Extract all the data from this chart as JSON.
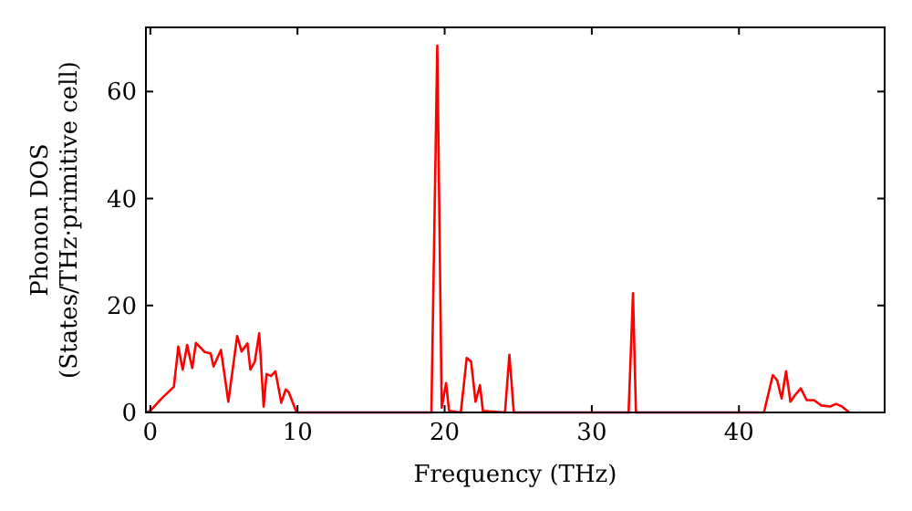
{
  "chart_data": {
    "type": "line",
    "xlabel": "Frequency (THz)",
    "ylabel": "Phonon DOS\n(States/THz·primitive cell)",
    "xlim": [
      -0.3,
      49.9
    ],
    "ylim": [
      0,
      72
    ],
    "xticks": [
      0,
      10,
      20,
      30,
      40
    ],
    "yticks": [
      0,
      20,
      40,
      60
    ],
    "grid": false,
    "marker": "none",
    "line_style": "solid",
    "series": [
      {
        "color": "#ff0000",
        "x": [
          -0.3,
          0,
          0.8,
          1.6,
          1.9,
          2.2,
          2.5,
          2.85,
          3.1,
          3.7,
          4.1,
          4.3,
          4.8,
          5.3,
          5.9,
          6.2,
          6.6,
          6.8,
          7.1,
          7.4,
          7.7,
          7.9,
          8.2,
          8.5,
          8.9,
          9.2,
          9.4,
          9.9,
          10,
          19.1,
          19.5,
          19.8,
          20.1,
          20.3,
          21.1,
          21.5,
          21.8,
          22.1,
          22.4,
          22.6,
          24.1,
          24.4,
          24.7,
          32.5,
          32.8,
          33.0,
          41.7,
          42.3,
          42.6,
          42.9,
          43.2,
          43.5,
          43.8,
          44.2,
          44.6,
          45.1,
          45.6,
          46.2,
          46.6,
          47.0,
          47.5
        ],
        "values": [
          0,
          0.3,
          2.7,
          4.8,
          12.3,
          8,
          12.6,
          8.3,
          13,
          11.3,
          11,
          8.6,
          11.7,
          2,
          14.3,
          11.4,
          12.9,
          8,
          9.5,
          14.8,
          1.1,
          7.2,
          6.8,
          7.7,
          1.8,
          4.3,
          3.8,
          0.3,
          0,
          0,
          68.6,
          0.9,
          5.5,
          0.3,
          0,
          10.2,
          9.5,
          2,
          5.1,
          0.3,
          0,
          10.8,
          0,
          0,
          22.3,
          0,
          0,
          7,
          6,
          2.6,
          7.7,
          2,
          3.2,
          4.5,
          2.3,
          2.3,
          1.3,
          1.1,
          1.6,
          1.1,
          0
        ]
      }
    ]
  }
}
